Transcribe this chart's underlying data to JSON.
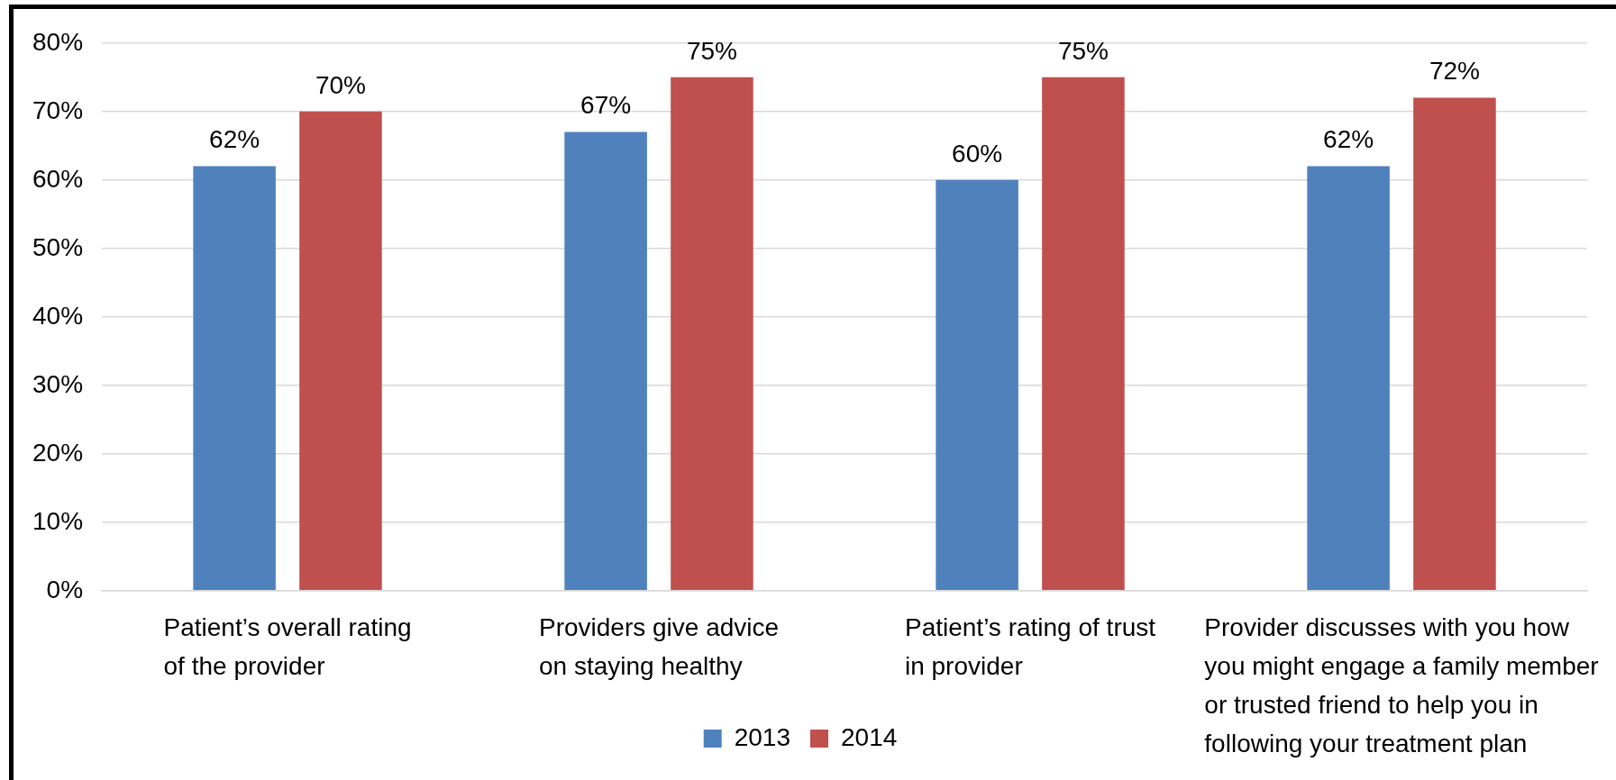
{
  "chart_data": {
    "type": "bar",
    "categories": [
      "Patient’s overall rating of the provider",
      "Providers give advice on staying healthy",
      "Patient’s rating of trust in provider",
      "Provider discusses with you how you might engage a family member or trusted friend to help you in following your treatment plan"
    ],
    "series": [
      {
        "name": "2013",
        "color": "#4f81bd",
        "values": [
          62,
          67,
          60,
          62
        ],
        "value_labels": [
          "62%",
          "67%",
          "60%",
          "62%"
        ]
      },
      {
        "name": "2014",
        "color": "#c0504d",
        "values": [
          70,
          75,
          75,
          72
        ],
        "value_labels": [
          "70%",
          "75%",
          "75%",
          "72%"
        ]
      }
    ],
    "ylim": [
      0,
      80
    ],
    "yticks": [
      {
        "value": 0,
        "label": "0%"
      },
      {
        "value": 10,
        "label": "10%"
      },
      {
        "value": 20,
        "label": "20%"
      },
      {
        "value": 30,
        "label": "30%"
      },
      {
        "value": 40,
        "label": "40%"
      },
      {
        "value": 50,
        "label": "50%"
      },
      {
        "value": 60,
        "label": "60%"
      },
      {
        "value": 70,
        "label": "70%"
      },
      {
        "value": 80,
        "label": "80%"
      }
    ],
    "grid": "y",
    "legend": "bottom"
  }
}
